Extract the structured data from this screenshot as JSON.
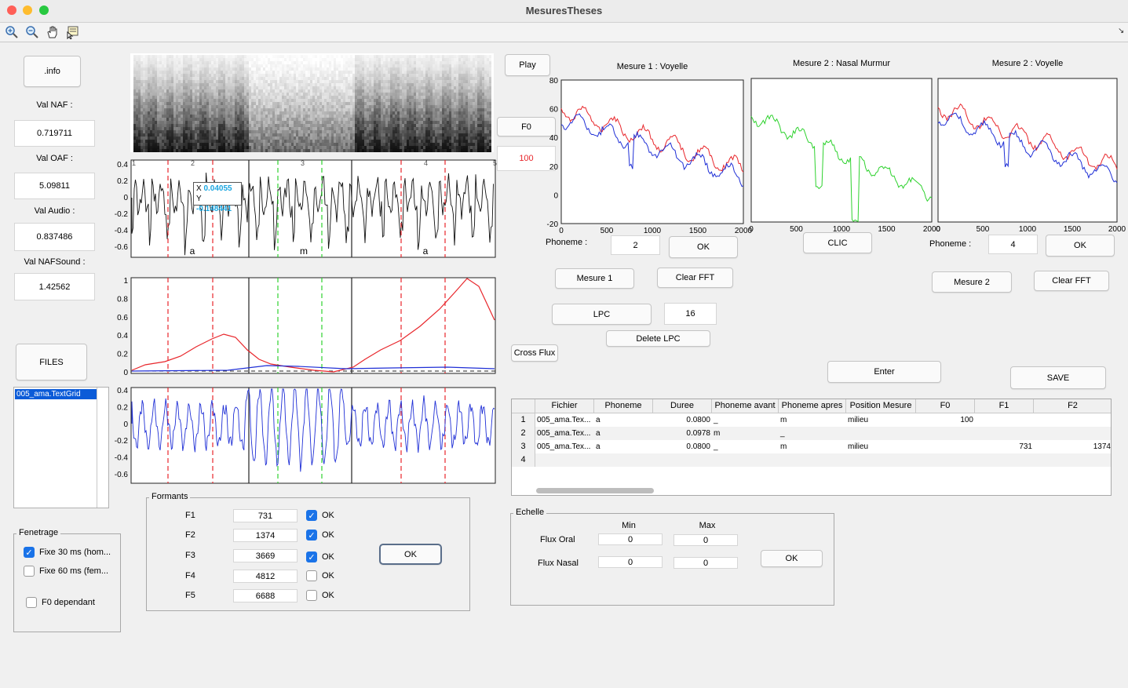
{
  "window": {
    "title": "MesuresTheses"
  },
  "toolbar": {
    "icons": [
      "zoom-in-icon",
      "zoom-out-icon",
      "pan-hand-icon",
      "data-cursor-icon"
    ]
  },
  "left": {
    "info_button": ".info",
    "val_naf_label": "Val NAF :",
    "val_naf": "0.719711",
    "val_oaf_label": "Val OAF :",
    "val_oaf": "5.09811",
    "val_audio_label": "Val Audio :",
    "val_audio": "0.837486",
    "val_nafsound_label": "Val NAFSound :",
    "val_nafsound": "1.42562",
    "files_button": "FILES",
    "files": [
      "005_ama.TextGrid"
    ]
  },
  "fenetrage": {
    "title": "Fenetrage",
    "options": [
      {
        "label": "Fixe 30 ms (hom...",
        "checked": true
      },
      {
        "label": "Fixe 60 ms (fem...",
        "checked": false
      },
      {
        "label": "F0 dependant",
        "checked": false
      }
    ]
  },
  "waveform": {
    "yticks": [
      "0.4",
      "0.2",
      "0",
      "-0.2",
      "-0.4",
      "-0.6"
    ],
    "interval_numbers": [
      "1",
      "2",
      "3",
      "4",
      "5"
    ],
    "phonemes": [
      "a",
      "m",
      "a"
    ],
    "datatip": {
      "x_label": "X",
      "x": "0.04055",
      "y_label": "Y",
      "y": "-0.148441"
    }
  },
  "flux_plot": {
    "yticks": [
      "1",
      "0.8",
      "0.6",
      "0.4",
      "0.2",
      "0"
    ]
  },
  "audio_plot": {
    "yticks": [
      "0.4",
      "0.2",
      "0",
      "-0.2",
      "-0.4",
      "-0.6"
    ]
  },
  "controls": {
    "play": "Play",
    "f0": "F0",
    "f0_value": "100",
    "cross_flux": "Cross Flux"
  },
  "formants": {
    "title": "Formants",
    "rows": [
      {
        "label": "F1",
        "value": "731",
        "checked": true,
        "ok": "OK"
      },
      {
        "label": "F2",
        "value": "1374",
        "checked": true,
        "ok": "OK"
      },
      {
        "label": "F3",
        "value": "3669",
        "checked": true,
        "ok": "OK"
      },
      {
        "label": "F4",
        "value": "4812",
        "checked": false,
        "ok": "OK"
      },
      {
        "label": "F5",
        "value": "6688",
        "checked": false,
        "ok": "OK"
      }
    ],
    "ok_button": "OK"
  },
  "spectra": {
    "titles": [
      "Mesure 1 : Voyelle",
      "Mesure 2 : Nasal Murmur",
      "Mesure 2 : Voyelle"
    ],
    "yticks": [
      "80",
      "60",
      "40",
      "20",
      "0",
      "-20"
    ],
    "xticks": [
      "0",
      "500",
      "1000",
      "1500",
      "2000"
    ]
  },
  "measure": {
    "phoneme_label_1": "Phoneme :",
    "phoneme_value_1": "2",
    "ok_1": "OK",
    "clic": "CLIC",
    "phoneme_label_2": "Phoneme :",
    "phoneme_value_2": "4",
    "ok_2": "OK",
    "mesure1": "Mesure 1",
    "clear_fft_1": "Clear FFT",
    "mesure2": "Mesure 2",
    "clear_fft_2": "Clear FFT",
    "lpc": "LPC",
    "lpc_order": "16",
    "delete_lpc": "Delete LPC",
    "enter": "Enter",
    "save": "SAVE"
  },
  "table": {
    "columns": [
      "Fichier",
      "Phoneme",
      "Duree",
      "Phoneme avant",
      "Phoneme apres",
      "Position Mesure",
      "F0",
      "F1",
      "F2"
    ],
    "row_numbers": [
      "1",
      "2",
      "3",
      "4"
    ],
    "rows": [
      [
        "005_ama.Tex...",
        "a",
        "0.0800",
        "_",
        "m",
        "milieu",
        "100",
        "",
        ""
      ],
      [
        "005_ama.Tex...",
        "a",
        "0.0978",
        "m",
        "_",
        "",
        "",
        "",
        ""
      ],
      [
        "005_ama.Tex...",
        "a",
        "0.0800",
        "_",
        "m",
        "milieu",
        "",
        "731",
        "1374"
      ]
    ]
  },
  "echelle": {
    "title": "Echelle",
    "min_label": "Min",
    "max_label": "Max",
    "flux_oral_label": "Flux Oral",
    "flux_oral_min": "0",
    "flux_oral_max": "0",
    "flux_nasal_label": "Flux Nasal",
    "flux_nasal_min": "0",
    "flux_nasal_max": "0",
    "ok": "OK"
  },
  "colors": {
    "red": "#e8262b",
    "blue": "#1f2fd6",
    "green": "#2ed22e",
    "accent": "#1a73e8",
    "datatip": "#1aa6e0"
  }
}
